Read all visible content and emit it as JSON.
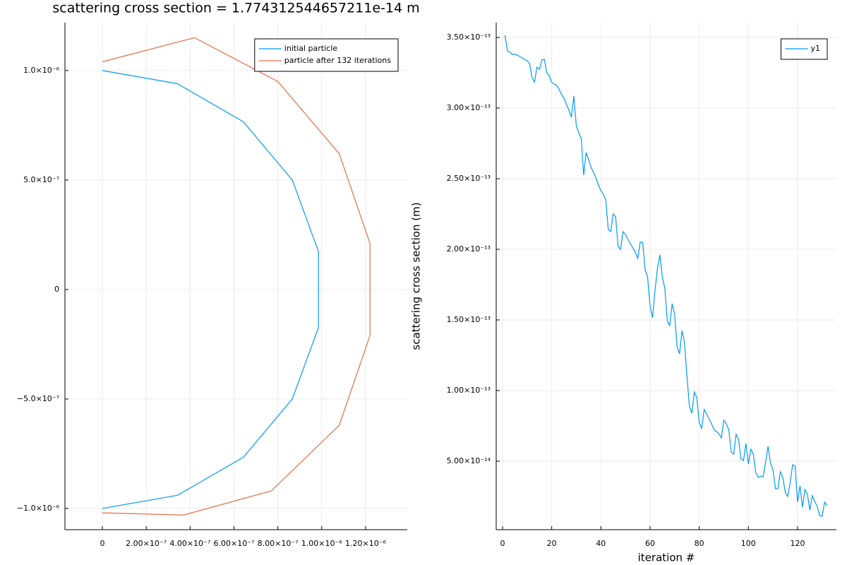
{
  "chart_data": [
    {
      "type": "line",
      "title": "scattering cross section = 1.774312544657211e-14 m",
      "series": [
        {
          "name": "initial particle",
          "color": "#009af9",
          "x": [
            0,
            3.42e-07,
            6.43e-07,
            8.66e-07,
            9.85e-07,
            9.85e-07,
            8.66e-07,
            6.43e-07,
            3.42e-07,
            0
          ],
          "values": [
            1e-06,
            9.4e-07,
            7.66e-07,
            5e-07,
            1.74e-07,
            -1.74e-07,
            -5e-07,
            -7.66e-07,
            -9.4e-07,
            -1e-06
          ]
        },
        {
          "name": "particle after 132 iterations",
          "color": "#e26f46",
          "x": [
            0,
            4.2e-07,
            8e-07,
            1.08e-06,
            1.22e-06,
            1.22e-06,
            1.08e-06,
            7.7e-07,
            3.7e-07,
            0
          ],
          "values": [
            1.04e-06,
            1.15e-06,
            9.5e-07,
            6.2e-07,
            2.1e-07,
            -2.1e-07,
            -6.2e-07,
            -9.2e-07,
            -1.03e-06,
            -1.02e-06
          ]
        }
      ],
      "xlim": [
        -1.705e-07,
        1.39e-06
      ],
      "ylim": [
        -1.097e-06,
        1.219e-06
      ],
      "xticks": [
        0,
        {
          "value": 2e-07,
          "label": "2.00×10⁻⁷"
        },
        {
          "value": 4e-07,
          "label": "4.00×10⁻⁷"
        },
        {
          "value": 6e-07,
          "label": "6.00×10⁻⁷"
        },
        {
          "value": 8e-07,
          "label": "8.00×10⁻⁷"
        },
        {
          "value": 1e-06,
          "label": "1.00×10⁻⁶"
        },
        {
          "value": 1.2e-06,
          "label": "1.20×10⁻⁶"
        }
      ],
      "yticks": [
        {
          "value": -1e-06,
          "label": "−1.0×10⁻⁶"
        },
        {
          "value": -5e-07,
          "label": "−5.0×10⁻⁷"
        },
        0,
        {
          "value": 5e-07,
          "label": "5.0×10⁻⁷"
        },
        {
          "value": 1e-06,
          "label": "1.0×10⁻⁶"
        }
      ],
      "grid": true,
      "legend": "top-right"
    },
    {
      "type": "line",
      "xlabel": "iteration #",
      "ylabel": "scattering cross section (m)",
      "series": [
        {
          "name": "y1",
          "color": "#009af9",
          "x": [
            1,
            2,
            3,
            4,
            5,
            6,
            7,
            8,
            9,
            10,
            11,
            12,
            13,
            14,
            15,
            16,
            17,
            18,
            19,
            20,
            21,
            22,
            23,
            24,
            25,
            26,
            27,
            28,
            29,
            30,
            31,
            32,
            33,
            34,
            35,
            36,
            37,
            38,
            39,
            40,
            41,
            42,
            43,
            44,
            45,
            46,
            47,
            48,
            49,
            50,
            51,
            52,
            53,
            54,
            55,
            56,
            57,
            58,
            59,
            60,
            61,
            62,
            63,
            64,
            65,
            66,
            67,
            68,
            69,
            70,
            71,
            72,
            73,
            74,
            75,
            76,
            77,
            78,
            79,
            80,
            81,
            82,
            83,
            84,
            85,
            86,
            87,
            88,
            89,
            90,
            91,
            92,
            93,
            94,
            95,
            96,
            97,
            98,
            99,
            100,
            101,
            102,
            103,
            104,
            105,
            106,
            107,
            108,
            109,
            110,
            111,
            112,
            113,
            114,
            115,
            116,
            117,
            118,
            119,
            120,
            121,
            122,
            123,
            124,
            125,
            126,
            127,
            128,
            129,
            130,
            131,
            132
          ],
          "values": [
            3.515e-13,
            3.405e-13,
            3.395e-13,
            3.38e-13,
            3.38e-13,
            3.375e-13,
            3.365e-13,
            3.355e-13,
            3.345e-13,
            3.335e-13,
            3.315e-13,
            3.215e-13,
            3.185e-13,
            3.29e-13,
            3.275e-13,
            3.34e-13,
            3.345e-13,
            3.25e-13,
            3.23e-13,
            3.18e-13,
            3.17e-13,
            3.16e-13,
            3.135e-13,
            3.095e-13,
            3.07e-13,
            3.025e-13,
            2.985e-13,
            2.935e-13,
            3.085e-13,
            2.875e-13,
            2.825e-13,
            2.785e-13,
            2.525e-13,
            2.685e-13,
            2.635e-13,
            2.58e-13,
            2.545e-13,
            2.505e-13,
            2.455e-13,
            2.415e-13,
            2.39e-13,
            2.35e-13,
            2.14e-13,
            2.125e-13,
            2.25e-13,
            2.23e-13,
            2.02e-13,
            2e-13,
            2.125e-13,
            2.105e-13,
            2.07e-13,
            2.04e-13,
            2.01e-13,
            1.98e-13,
            1.935e-13,
            2.05e-13,
            2.05e-13,
            1.855e-13,
            1.805e-13,
            1.595e-13,
            1.515e-13,
            1.705e-13,
            1.865e-13,
            1.96e-13,
            1.805e-13,
            1.725e-13,
            1.495e-13,
            1.46e-13,
            1.615e-13,
            1.54e-13,
            1.31e-13,
            1.26e-13,
            1.425e-13,
            1.34e-13,
            1.105e-13,
            8.9e-14,
            8.4e-14,
            9.9e-14,
            9.5e-14,
            7.75e-14,
            7.3e-14,
            8.65e-14,
            8.35e-14,
            8e-14,
            7.65e-14,
            7.25e-14,
            7.1e-14,
            6.95e-14,
            6.65e-14,
            7.9e-14,
            7.65e-14,
            7.25e-14,
            5.65e-14,
            5.5e-14,
            6.9e-14,
            6.55e-14,
            5.15e-14,
            5.05e-14,
            6.25e-14,
            4.8e-14,
            5.85e-14,
            5.5e-14,
            4.2e-14,
            3.85e-14,
            3.95e-14,
            3.9e-14,
            4.95e-14,
            6.05e-14,
            4.85e-14,
            4.4e-14,
            3.05e-14,
            3.05e-14,
            4.25e-14,
            3.85e-14,
            2.8e-14,
            2.5e-14,
            3.5e-14,
            4.75e-14,
            4.65e-14,
            2.1e-14,
            3.25e-14,
            1.75e-14,
            3e-14,
            2.65e-14,
            1.55e-14,
            2.55e-14,
            2.15e-14,
            1.8e-14,
            1.15e-14,
            1.1e-14,
            2.1e-14,
            1.85e-14
          ]
        }
      ],
      "xlim": [
        -2.58,
        135.8
      ],
      "ylim": [
        1.5e-15,
        3.605e-13
      ],
      "xticks": [
        0,
        20,
        40,
        60,
        80,
        100,
        120
      ],
      "yticks": [
        {
          "value": 5e-14,
          "label": "5.00×10⁻¹⁴"
        },
        {
          "value": 1e-13,
          "label": "1.00×10⁻¹³"
        },
        {
          "value": 1.5e-13,
          "label": "1.50×10⁻¹³"
        },
        {
          "value": 2e-13,
          "label": "2.00×10⁻¹³"
        },
        {
          "value": 2.5e-13,
          "label": "2.50×10⁻¹³"
        },
        {
          "value": 3e-13,
          "label": "3.00×10⁻¹³"
        },
        {
          "value": 3.5e-13,
          "label": "3.50×10⁻¹³"
        }
      ],
      "grid": true,
      "legend": "top-right"
    }
  ]
}
